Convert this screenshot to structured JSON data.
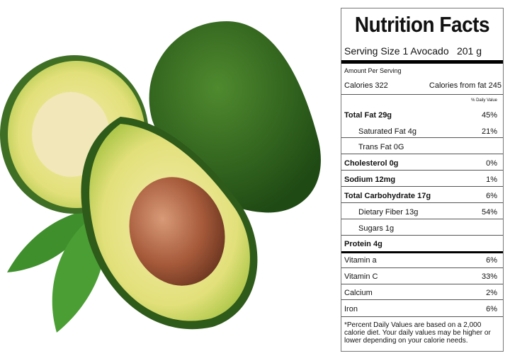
{
  "label": {
    "title": "Nutrition Facts",
    "serving_size": "Serving Size 1 Avocado",
    "serving_weight": "201 g",
    "amount_per_serving": "Amount Per Serving",
    "calories": "Calories  322",
    "calories_from_fat": "Calories from fat 245",
    "daily_value_header": "% Daily Value",
    "nutrients": [
      {
        "name": "Total Fat    29g",
        "dv": "45%"
      },
      {
        "name": "Saturated Fat 4g",
        "dv": "21%"
      },
      {
        "name": "Trans Fat 0G",
        "dv": ""
      },
      {
        "name": "Cholesterol 0g",
        "dv": "0%"
      },
      {
        "name": "Sodium 12mg",
        "dv": "1%"
      },
      {
        "name": "Total Carbohydrate 17g",
        "dv": "6%"
      },
      {
        "name": "Dietary Fiber 13g",
        "dv": "54%"
      },
      {
        "name": "Sugars 1g",
        "dv": ""
      },
      {
        "name": "Protein 4g",
        "dv": ""
      }
    ],
    "vitamins": [
      {
        "name": "Vitamin a",
        "dv": "6%"
      },
      {
        "name": "Vitamin C",
        "dv": "33%"
      },
      {
        "name": "Calcium",
        "dv": "2%"
      },
      {
        "name": "Iron",
        "dv": "6%"
      }
    ],
    "footnote": "*Percent Daily Values are based on a 2,000 calorie diet. Your daily values may be higher or lower depending on your calorie needs."
  }
}
